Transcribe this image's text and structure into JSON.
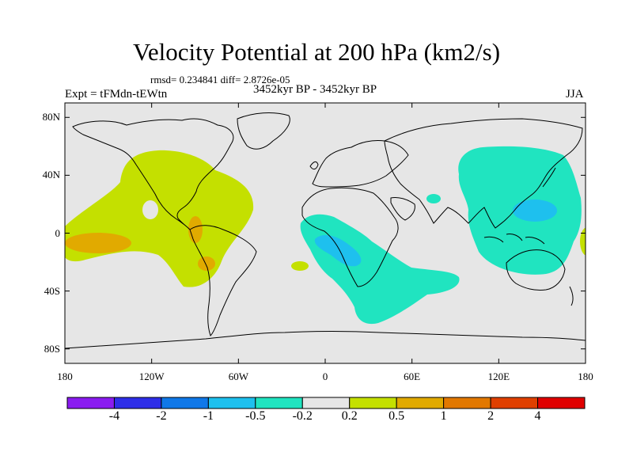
{
  "title": "Velocity Potential at 200 hPa (km2/s)",
  "stats": "rmsd= 0.234841 diff= 2.8726e-05",
  "left_label": "Expt = tFMdn-tEWtn",
  "center_label": "3452kyr BP - 3452kyr BP",
  "right_label": "JJA",
  "map": {
    "projection": "cylindrical equidistant",
    "lon_range": [
      -180,
      180
    ],
    "lat_range": [
      -90,
      90
    ],
    "lat_ticks": [
      {
        "lat": 80,
        "label": "80N"
      },
      {
        "lat": 40,
        "label": "40N"
      },
      {
        "lat": 0,
        "label": "0"
      },
      {
        "lat": -40,
        "label": "40S"
      },
      {
        "lat": -80,
        "label": "80S"
      }
    ],
    "lon_ticks": [
      {
        "lon": -180,
        "label": "180"
      },
      {
        "lon": -120,
        "label": "120W"
      },
      {
        "lon": -60,
        "label": "60W"
      },
      {
        "lon": 0,
        "label": "0"
      },
      {
        "lon": 60,
        "label": "60E"
      },
      {
        "lon": 120,
        "label": "120E"
      },
      {
        "lon": 180,
        "label": "180"
      }
    ],
    "contour_regions": [
      {
        "name": "pacific-americas-positive",
        "level": "0.2 to 0.5",
        "color": "#c4e000",
        "center_lon": -100,
        "center_lat": 10
      },
      {
        "name": "central-pacific-max",
        "level": "0.5 to 1",
        "color": "#e1aa00",
        "center_lon": -163,
        "center_lat": -5
      },
      {
        "name": "central-america-max",
        "level": "0.5 to 1",
        "color": "#e1aa00",
        "center_lon": -90,
        "center_lat": 4
      },
      {
        "name": "south-america-max",
        "level": "0.5 to 1",
        "color": "#e1aa00",
        "center_lon": -84,
        "center_lat": -20
      },
      {
        "name": "africa-atlantic-negative",
        "level": "-0.5 to -0.2",
        "color": "#20e4c0",
        "center_lon": 35,
        "center_lat": -30
      },
      {
        "name": "central-africa-min",
        "level": "-1 to -0.5",
        "color": "#1ec0ee",
        "center_lon": 12,
        "center_lat": -10
      },
      {
        "name": "asia-west-pacific-negative",
        "level": "-0.5 to -0.2",
        "color": "#20e4c0",
        "center_lon": 120,
        "center_lat": 20
      },
      {
        "name": "western-pacific-min",
        "level": "-1 to -0.5",
        "color": "#1ec0ee",
        "center_lon": 145,
        "center_lat": 18
      },
      {
        "name": "east-pacific-edge-positive",
        "level": "0.2 to 0.5",
        "color": "#c4e000",
        "center_lon": 178,
        "center_lat": -5
      }
    ]
  },
  "colorbar": {
    "colors": [
      "#8a1cf0",
      "#2e2ee8",
      "#1078e8",
      "#1ec0ee",
      "#20e4c0",
      "#e6e6e6",
      "#c4e000",
      "#e1aa00",
      "#e27800",
      "#e04000",
      "#e00000"
    ],
    "labels": [
      "-4",
      "-2",
      "-1",
      "-0.5",
      "-0.2",
      "0.2",
      "0.5",
      "1",
      "2",
      "4"
    ]
  }
}
